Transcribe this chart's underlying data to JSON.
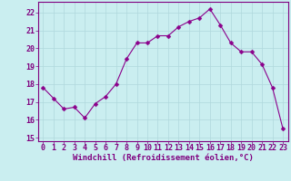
{
  "x": [
    0,
    1,
    2,
    3,
    4,
    5,
    6,
    7,
    8,
    9,
    10,
    11,
    12,
    13,
    14,
    15,
    16,
    17,
    18,
    19,
    20,
    21,
    22,
    23
  ],
  "y": [
    17.8,
    17.2,
    16.6,
    16.7,
    16.1,
    16.9,
    17.3,
    18.0,
    19.4,
    20.3,
    20.3,
    20.7,
    20.7,
    21.2,
    21.5,
    21.7,
    22.2,
    21.3,
    20.3,
    19.8,
    19.8,
    19.1,
    17.8,
    15.5
  ],
  "line_color": "#8B008B",
  "marker": "D",
  "marker_size": 2.5,
  "bg_color": "#caeef0",
  "grid_color": "#b0d8dc",
  "xlabel": "Windchill (Refroidissement éolien,°C)",
  "ylim": [
    14.8,
    22.6
  ],
  "xlim": [
    -0.5,
    23.5
  ],
  "yticks": [
    15,
    16,
    17,
    18,
    19,
    20,
    21,
    22
  ],
  "xticks": [
    0,
    1,
    2,
    3,
    4,
    5,
    6,
    7,
    8,
    9,
    10,
    11,
    12,
    13,
    14,
    15,
    16,
    17,
    18,
    19,
    20,
    21,
    22,
    23
  ],
  "axis_color": "#800080",
  "label_fontsize": 6.5,
  "tick_fontsize": 6.0
}
